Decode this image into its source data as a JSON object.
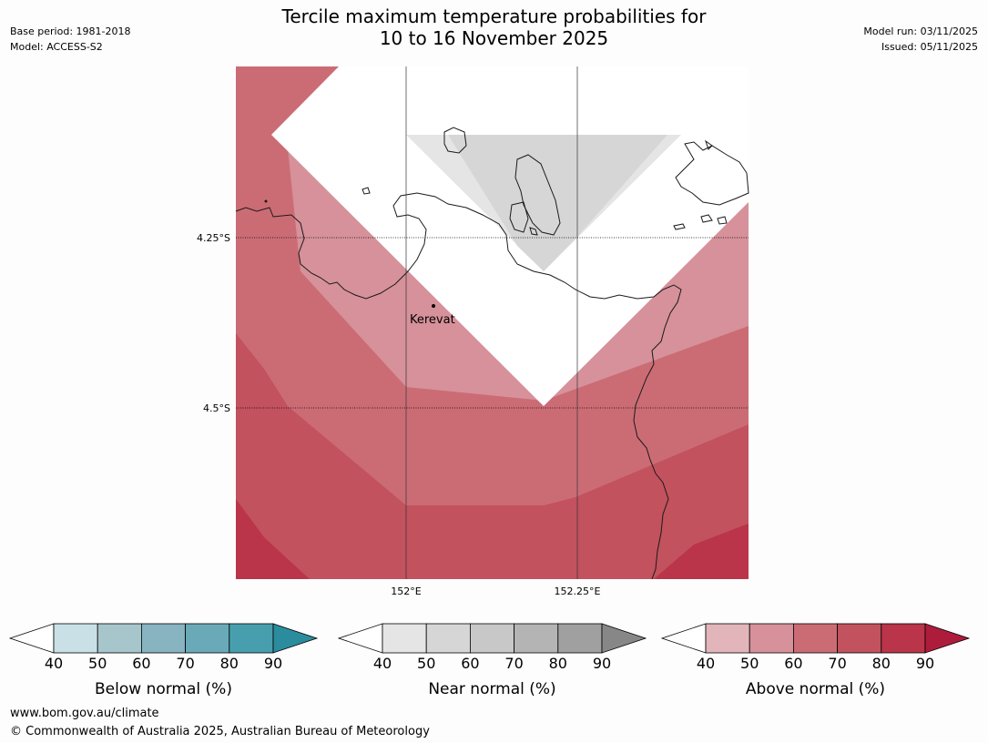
{
  "title": {
    "line1": "Tercile maximum temperature probabilities for",
    "line2": "10 to 16 November 2025"
  },
  "meta_left": {
    "base_period": "Base period: 1981-2018",
    "model": "Model: ACCESS-S2"
  },
  "meta_right": {
    "model_run": "Model run: 03/11/2025",
    "issued": "Issued: 05/11/2025"
  },
  "map": {
    "lat_labels": [
      "4.25°S",
      "4.5°S"
    ],
    "lon_labels": [
      "152°E",
      "152.25°E"
    ],
    "place": "Kerevat",
    "colors": {
      "coast": "#1a1a1a",
      "grid": "#000000"
    }
  },
  "colorbars": [
    {
      "label": "Below normal (%)",
      "ticks": [
        "40",
        "50",
        "60",
        "70",
        "80",
        "90"
      ],
      "colors": [
        "#c9e1e6",
        "#a7c6cc",
        "#88b4c1",
        "#6aaab8",
        "#479fad",
        "#2a8c9c"
      ]
    },
    {
      "label": "Near normal (%)",
      "ticks": [
        "40",
        "50",
        "60",
        "70",
        "80",
        "90"
      ],
      "colors": [
        "#e5e5e5",
        "#d6d6d6",
        "#c8c8c8",
        "#b4b4b4",
        "#a0a0a0",
        "#878787"
      ]
    },
    {
      "label": "Above normal (%)",
      "ticks": [
        "40",
        "50",
        "60",
        "70",
        "80",
        "90"
      ],
      "colors": [
        "#e2b5ba",
        "#d6919a",
        "#cb6c75",
        "#c2525e",
        "#ba3549",
        "#ae1c3c"
      ]
    }
  ],
  "footer": {
    "url": "www.bom.gov.au/climate",
    "copyright": "© Commonwealth of Australia 2025, Australian Bureau of Meteorology"
  }
}
